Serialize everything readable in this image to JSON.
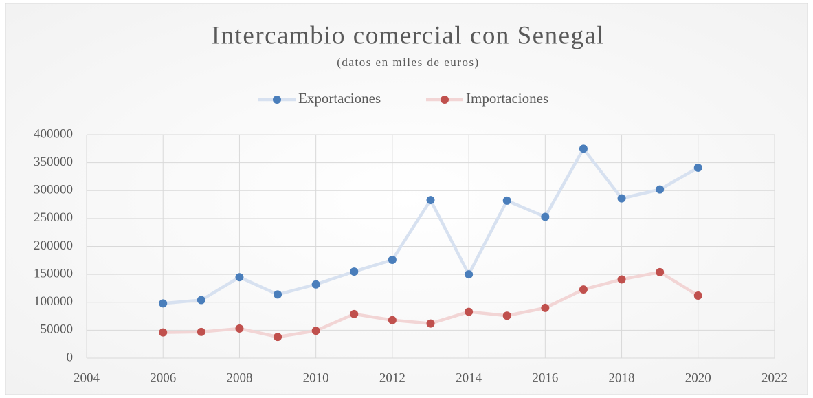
{
  "chart_data": {
    "type": "line",
    "title": "Intercambio comercial con Senegal",
    "subtitle": "(datos en miles de euros)",
    "x": [
      2006,
      2007,
      2008,
      2009,
      2010,
      2011,
      2012,
      2013,
      2014,
      2015,
      2016,
      2017,
      2018,
      2019,
      2020
    ],
    "series": [
      {
        "name": "Exportaciones",
        "color": "#4a7ebb",
        "line_color": "#d7e1f0",
        "values": [
          98000,
          104000,
          145000,
          114000,
          132000,
          155000,
          176000,
          283000,
          150000,
          282000,
          253000,
          375000,
          286000,
          302000,
          341000
        ]
      },
      {
        "name": "Importaciones",
        "color": "#c0504d",
        "line_color": "#f2d5d5",
        "values": [
          46000,
          47000,
          53000,
          38000,
          49000,
          79000,
          68000,
          62000,
          83000,
          76000,
          90000,
          123000,
          141000,
          154000,
          112000
        ]
      }
    ],
    "xlim": [
      2004,
      2022
    ],
    "xticks": [
      2004,
      2006,
      2008,
      2010,
      2012,
      2014,
      2016,
      2018,
      2020,
      2022
    ],
    "ylim": [
      0,
      400000
    ],
    "yticks": [
      0,
      50000,
      100000,
      150000,
      200000,
      250000,
      300000,
      350000,
      400000
    ],
    "grid": true,
    "legend": "top"
  }
}
